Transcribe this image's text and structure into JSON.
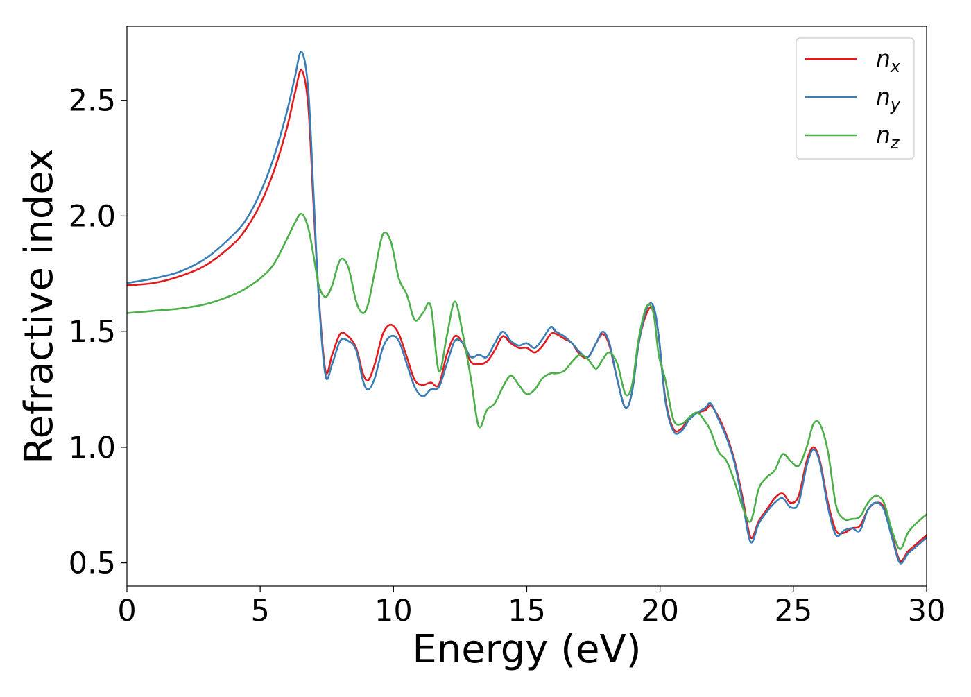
{
  "chart_data": {
    "type": "line",
    "xlabel": "Energy (eV)",
    "ylabel": "Refractive index",
    "xlim": [
      0,
      30
    ],
    "ylim": [
      0.4,
      2.82
    ],
    "xticks": [
      {
        "value": 0,
        "label": "0"
      },
      {
        "value": 5,
        "label": "5"
      },
      {
        "value": 10,
        "label": "10"
      },
      {
        "value": 15,
        "label": "15"
      },
      {
        "value": 20,
        "label": "20"
      },
      {
        "value": 25,
        "label": "25"
      },
      {
        "value": 30,
        "label": "30"
      }
    ],
    "yticks": [
      {
        "value": 0.5,
        "label": "0.5"
      },
      {
        "value": 1.0,
        "label": "1.0"
      },
      {
        "value": 1.5,
        "label": "1.5"
      },
      {
        "value": 2.0,
        "label": "2.0"
      },
      {
        "value": 2.5,
        "label": "2.5"
      }
    ],
    "grid": false,
    "legend_position": "top-right",
    "series": [
      {
        "name": "n_x",
        "legend_base": "n",
        "legend_sub": "x",
        "color": "#e41a1c",
        "x": [
          0,
          1,
          2,
          3,
          4,
          4.5,
          5,
          5.5,
          6,
          6.3,
          6.55,
          6.8,
          7.0,
          7.2,
          7.45,
          7.7,
          8.0,
          8.3,
          8.6,
          8.85,
          9.05,
          9.3,
          9.6,
          9.9,
          10.2,
          10.5,
          10.8,
          11.1,
          11.4,
          11.7,
          12.0,
          12.3,
          12.6,
          12.9,
          13.2,
          13.5,
          13.8,
          14.1,
          14.4,
          14.7,
          15.0,
          15.3,
          15.6,
          15.9,
          16.1,
          16.4,
          16.7,
          17.0,
          17.3,
          17.6,
          17.85,
          18.1,
          18.4,
          18.7,
          18.95,
          19.2,
          19.5,
          19.75,
          19.95,
          20.2,
          20.5,
          20.8,
          21.1,
          21.4,
          21.7,
          21.9,
          22.2,
          22.5,
          22.8,
          23.1,
          23.4,
          23.7,
          24.0,
          24.3,
          24.6,
          24.9,
          25.2,
          25.5,
          25.75,
          26.0,
          26.3,
          26.6,
          26.9,
          27.2,
          27.5,
          27.8,
          28.1,
          28.4,
          28.7,
          29.0,
          29.3,
          29.6,
          30.0
        ],
        "y": [
          1.7,
          1.71,
          1.74,
          1.79,
          1.88,
          1.95,
          2.05,
          2.19,
          2.38,
          2.53,
          2.63,
          2.48,
          2.05,
          1.65,
          1.33,
          1.4,
          1.49,
          1.48,
          1.43,
          1.32,
          1.29,
          1.36,
          1.49,
          1.53,
          1.49,
          1.39,
          1.29,
          1.27,
          1.28,
          1.27,
          1.4,
          1.48,
          1.45,
          1.37,
          1.36,
          1.37,
          1.42,
          1.48,
          1.45,
          1.43,
          1.43,
          1.41,
          1.44,
          1.49,
          1.49,
          1.47,
          1.45,
          1.4,
          1.39,
          1.45,
          1.49,
          1.44,
          1.29,
          1.17,
          1.24,
          1.45,
          1.58,
          1.6,
          1.48,
          1.21,
          1.08,
          1.08,
          1.13,
          1.15,
          1.16,
          1.18,
          1.13,
          1.05,
          0.94,
          0.78,
          0.61,
          0.68,
          0.73,
          0.78,
          0.8,
          0.76,
          0.79,
          0.94,
          1.0,
          0.94,
          0.76,
          0.64,
          0.63,
          0.65,
          0.66,
          0.73,
          0.76,
          0.74,
          0.62,
          0.51,
          0.55,
          0.58,
          0.62
        ]
      },
      {
        "name": "n_y",
        "legend_base": "n",
        "legend_sub": "y",
        "color": "#377eb8",
        "x": [
          0,
          1,
          2,
          3,
          4,
          4.5,
          5,
          5.5,
          6,
          6.3,
          6.55,
          6.8,
          7.0,
          7.2,
          7.45,
          7.7,
          8.0,
          8.3,
          8.6,
          8.85,
          9.05,
          9.3,
          9.6,
          9.9,
          10.2,
          10.5,
          10.8,
          11.1,
          11.4,
          11.7,
          12.0,
          12.3,
          12.6,
          12.9,
          13.2,
          13.5,
          13.8,
          14.1,
          14.4,
          14.7,
          15.0,
          15.3,
          15.6,
          15.9,
          16.1,
          16.4,
          16.7,
          17.0,
          17.3,
          17.6,
          17.85,
          18.1,
          18.4,
          18.7,
          18.95,
          19.2,
          19.5,
          19.75,
          19.95,
          20.2,
          20.5,
          20.8,
          21.1,
          21.4,
          21.7,
          21.9,
          22.2,
          22.5,
          22.8,
          23.1,
          23.4,
          23.7,
          24.0,
          24.3,
          24.6,
          24.9,
          25.2,
          25.5,
          25.75,
          26.0,
          26.3,
          26.6,
          26.9,
          27.2,
          27.5,
          27.8,
          28.1,
          28.4,
          28.7,
          29.0,
          29.3,
          29.6,
          30.0
        ],
        "y": [
          1.71,
          1.73,
          1.76,
          1.82,
          1.92,
          1.99,
          2.1,
          2.25,
          2.45,
          2.6,
          2.71,
          2.55,
          2.1,
          1.64,
          1.31,
          1.36,
          1.46,
          1.46,
          1.42,
          1.29,
          1.25,
          1.3,
          1.43,
          1.48,
          1.46,
          1.36,
          1.26,
          1.22,
          1.25,
          1.26,
          1.36,
          1.46,
          1.45,
          1.39,
          1.4,
          1.39,
          1.45,
          1.5,
          1.46,
          1.44,
          1.45,
          1.43,
          1.47,
          1.52,
          1.5,
          1.48,
          1.45,
          1.41,
          1.39,
          1.45,
          1.5,
          1.45,
          1.29,
          1.17,
          1.24,
          1.45,
          1.6,
          1.61,
          1.48,
          1.2,
          1.07,
          1.07,
          1.12,
          1.15,
          1.17,
          1.19,
          1.12,
          1.04,
          0.93,
          0.76,
          0.59,
          0.67,
          0.72,
          0.76,
          0.78,
          0.74,
          0.76,
          0.92,
          0.99,
          0.93,
          0.74,
          0.62,
          0.64,
          0.65,
          0.64,
          0.73,
          0.76,
          0.73,
          0.61,
          0.5,
          0.54,
          0.57,
          0.61
        ]
      },
      {
        "name": "n_z",
        "legend_base": "n",
        "legend_sub": "z",
        "color": "#4daf4a",
        "x": [
          0,
          1,
          2,
          3,
          4,
          4.5,
          5,
          5.5,
          6,
          6.3,
          6.55,
          6.8,
          7.0,
          7.2,
          7.45,
          7.7,
          8.0,
          8.3,
          8.6,
          8.85,
          9.05,
          9.3,
          9.6,
          9.9,
          10.2,
          10.5,
          10.8,
          11.1,
          11.4,
          11.7,
          12.0,
          12.3,
          12.6,
          12.9,
          13.2,
          13.5,
          13.8,
          14.1,
          14.4,
          14.7,
          15.0,
          15.3,
          15.6,
          15.9,
          16.1,
          16.4,
          16.7,
          17.0,
          17.3,
          17.6,
          17.85,
          18.1,
          18.4,
          18.7,
          18.95,
          19.2,
          19.5,
          19.75,
          19.95,
          20.2,
          20.5,
          20.8,
          21.1,
          21.4,
          21.7,
          21.9,
          22.2,
          22.5,
          22.8,
          23.1,
          23.4,
          23.7,
          24.0,
          24.3,
          24.6,
          24.9,
          25.2,
          25.5,
          25.75,
          26.0,
          26.3,
          26.6,
          26.9,
          27.2,
          27.5,
          27.8,
          28.1,
          28.4,
          28.7,
          29.0,
          29.3,
          29.6,
          30.0
        ],
        "y": [
          1.58,
          1.59,
          1.6,
          1.62,
          1.66,
          1.69,
          1.73,
          1.79,
          1.9,
          1.97,
          2.01,
          1.95,
          1.83,
          1.7,
          1.65,
          1.7,
          1.81,
          1.78,
          1.63,
          1.58,
          1.62,
          1.76,
          1.92,
          1.89,
          1.73,
          1.66,
          1.55,
          1.58,
          1.61,
          1.33,
          1.48,
          1.63,
          1.49,
          1.3,
          1.09,
          1.16,
          1.19,
          1.26,
          1.31,
          1.27,
          1.23,
          1.25,
          1.3,
          1.32,
          1.32,
          1.33,
          1.37,
          1.4,
          1.38,
          1.34,
          1.38,
          1.41,
          1.36,
          1.23,
          1.27,
          1.47,
          1.61,
          1.58,
          1.4,
          1.29,
          1.12,
          1.1,
          1.13,
          1.15,
          1.11,
          1.07,
          0.98,
          0.94,
          0.85,
          0.74,
          0.68,
          0.82,
          0.87,
          0.9,
          0.97,
          0.94,
          0.92,
          1.0,
          1.1,
          1.1,
          0.98,
          0.75,
          0.69,
          0.69,
          0.7,
          0.76,
          0.79,
          0.76,
          0.64,
          0.56,
          0.63,
          0.67,
          0.71
        ]
      }
    ]
  }
}
